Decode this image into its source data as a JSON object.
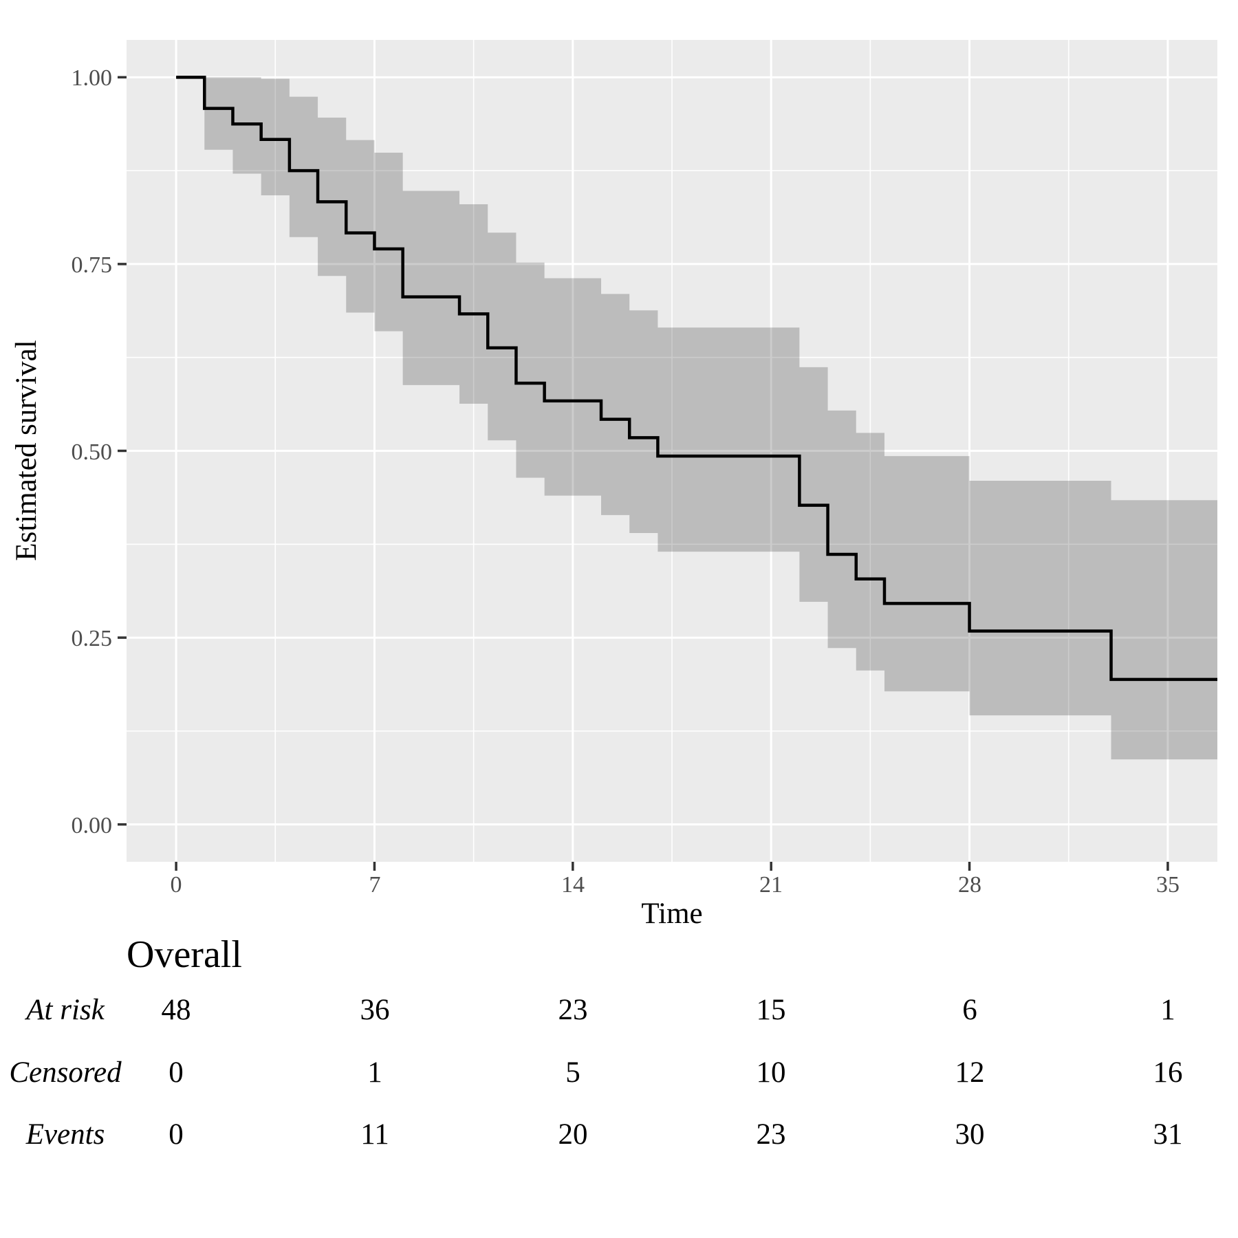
{
  "chart_data": {
    "type": "line",
    "subtype": "kaplan-meier-step",
    "title": "",
    "xlabel": "Time",
    "ylabel": "Estimated survival",
    "xlim": [
      -1.75,
      36.75
    ],
    "ylim": [
      -0.05,
      1.05
    ],
    "x_ticks": [
      0,
      7,
      14,
      21,
      28,
      35
    ],
    "x_tick_labels": [
      "0",
      "7",
      "14",
      "21",
      "28",
      "35"
    ],
    "x_minor_ticks": [
      3.5,
      10.5,
      17.5,
      24.5,
      31.5
    ],
    "y_ticks": [
      1.0,
      0.75,
      0.5,
      0.25,
      0.0
    ],
    "y_tick_labels": [
      "1.00",
      "0.75",
      "0.50",
      "0.25",
      "0.00"
    ],
    "y_minor_ticks": [
      0.875,
      0.625,
      0.375,
      0.125
    ],
    "grid": true,
    "legend_position": "none",
    "series": [
      {
        "name": "Overall",
        "end_time": 36.75,
        "points": [
          [
            0,
            1.0
          ],
          [
            1,
            0.9583
          ],
          [
            2,
            0.9375
          ],
          [
            3,
            0.9167
          ],
          [
            4,
            0.875
          ],
          [
            5,
            0.8333
          ],
          [
            6,
            0.7917
          ],
          [
            7,
            0.7703
          ],
          [
            8,
            0.7061
          ],
          [
            10,
            0.6833
          ],
          [
            11,
            0.6378
          ],
          [
            12,
            0.5905
          ],
          [
            13,
            0.5669
          ],
          [
            15,
            0.5422
          ],
          [
            16,
            0.5176
          ],
          [
            17,
            0.493
          ],
          [
            22,
            0.4272
          ],
          [
            23,
            0.3615
          ],
          [
            24,
            0.3286
          ],
          [
            25,
            0.2958
          ],
          [
            28,
            0.2588
          ],
          [
            33,
            0.1941
          ]
        ],
        "ci_segments": [
          [
            1,
            2,
            0.903,
            1.0
          ],
          [
            2,
            3,
            0.871,
            1.0
          ],
          [
            3,
            4,
            0.842,
            0.998
          ],
          [
            4,
            5,
            0.786,
            0.974
          ],
          [
            5,
            6,
            0.734,
            0.946
          ],
          [
            6,
            7,
            0.685,
            0.916
          ],
          [
            7,
            8,
            0.66,
            0.899
          ],
          [
            8,
            10,
            0.588,
            0.848
          ],
          [
            10,
            11,
            0.563,
            0.83
          ],
          [
            11,
            12,
            0.514,
            0.792
          ],
          [
            12,
            13,
            0.464,
            0.752
          ],
          [
            13,
            15,
            0.44,
            0.731
          ],
          [
            15,
            16,
            0.414,
            0.71
          ],
          [
            16,
            17,
            0.39,
            0.688
          ],
          [
            17,
            22,
            0.365,
            0.665
          ],
          [
            22,
            23,
            0.298,
            0.612
          ],
          [
            23,
            24,
            0.236,
            0.554
          ],
          [
            24,
            25,
            0.206,
            0.524
          ],
          [
            25,
            28,
            0.178,
            0.493
          ],
          [
            28,
            33,
            0.146,
            0.46
          ],
          [
            33,
            36.75,
            0.087,
            0.434
          ]
        ]
      }
    ],
    "colors": {
      "panel_background": "#EBEBEB",
      "gridline": "#FFFFFF",
      "ci_ribbon": "rgba(0,0,0,0.2)",
      "curve": "#000000",
      "tick_mark": "#333333",
      "tick_label": "#4D4D4D"
    }
  },
  "risk_table": {
    "group_label": "Overall",
    "times": [
      0,
      7,
      14,
      21,
      28,
      35
    ],
    "rows": [
      {
        "label": "At risk",
        "values": [
          48,
          36,
          23,
          15,
          6,
          1
        ]
      },
      {
        "label": "Censored",
        "values": [
          0,
          1,
          5,
          10,
          12,
          16
        ]
      },
      {
        "label": "Events",
        "values": [
          0,
          11,
          20,
          23,
          30,
          31
        ]
      }
    ]
  }
}
